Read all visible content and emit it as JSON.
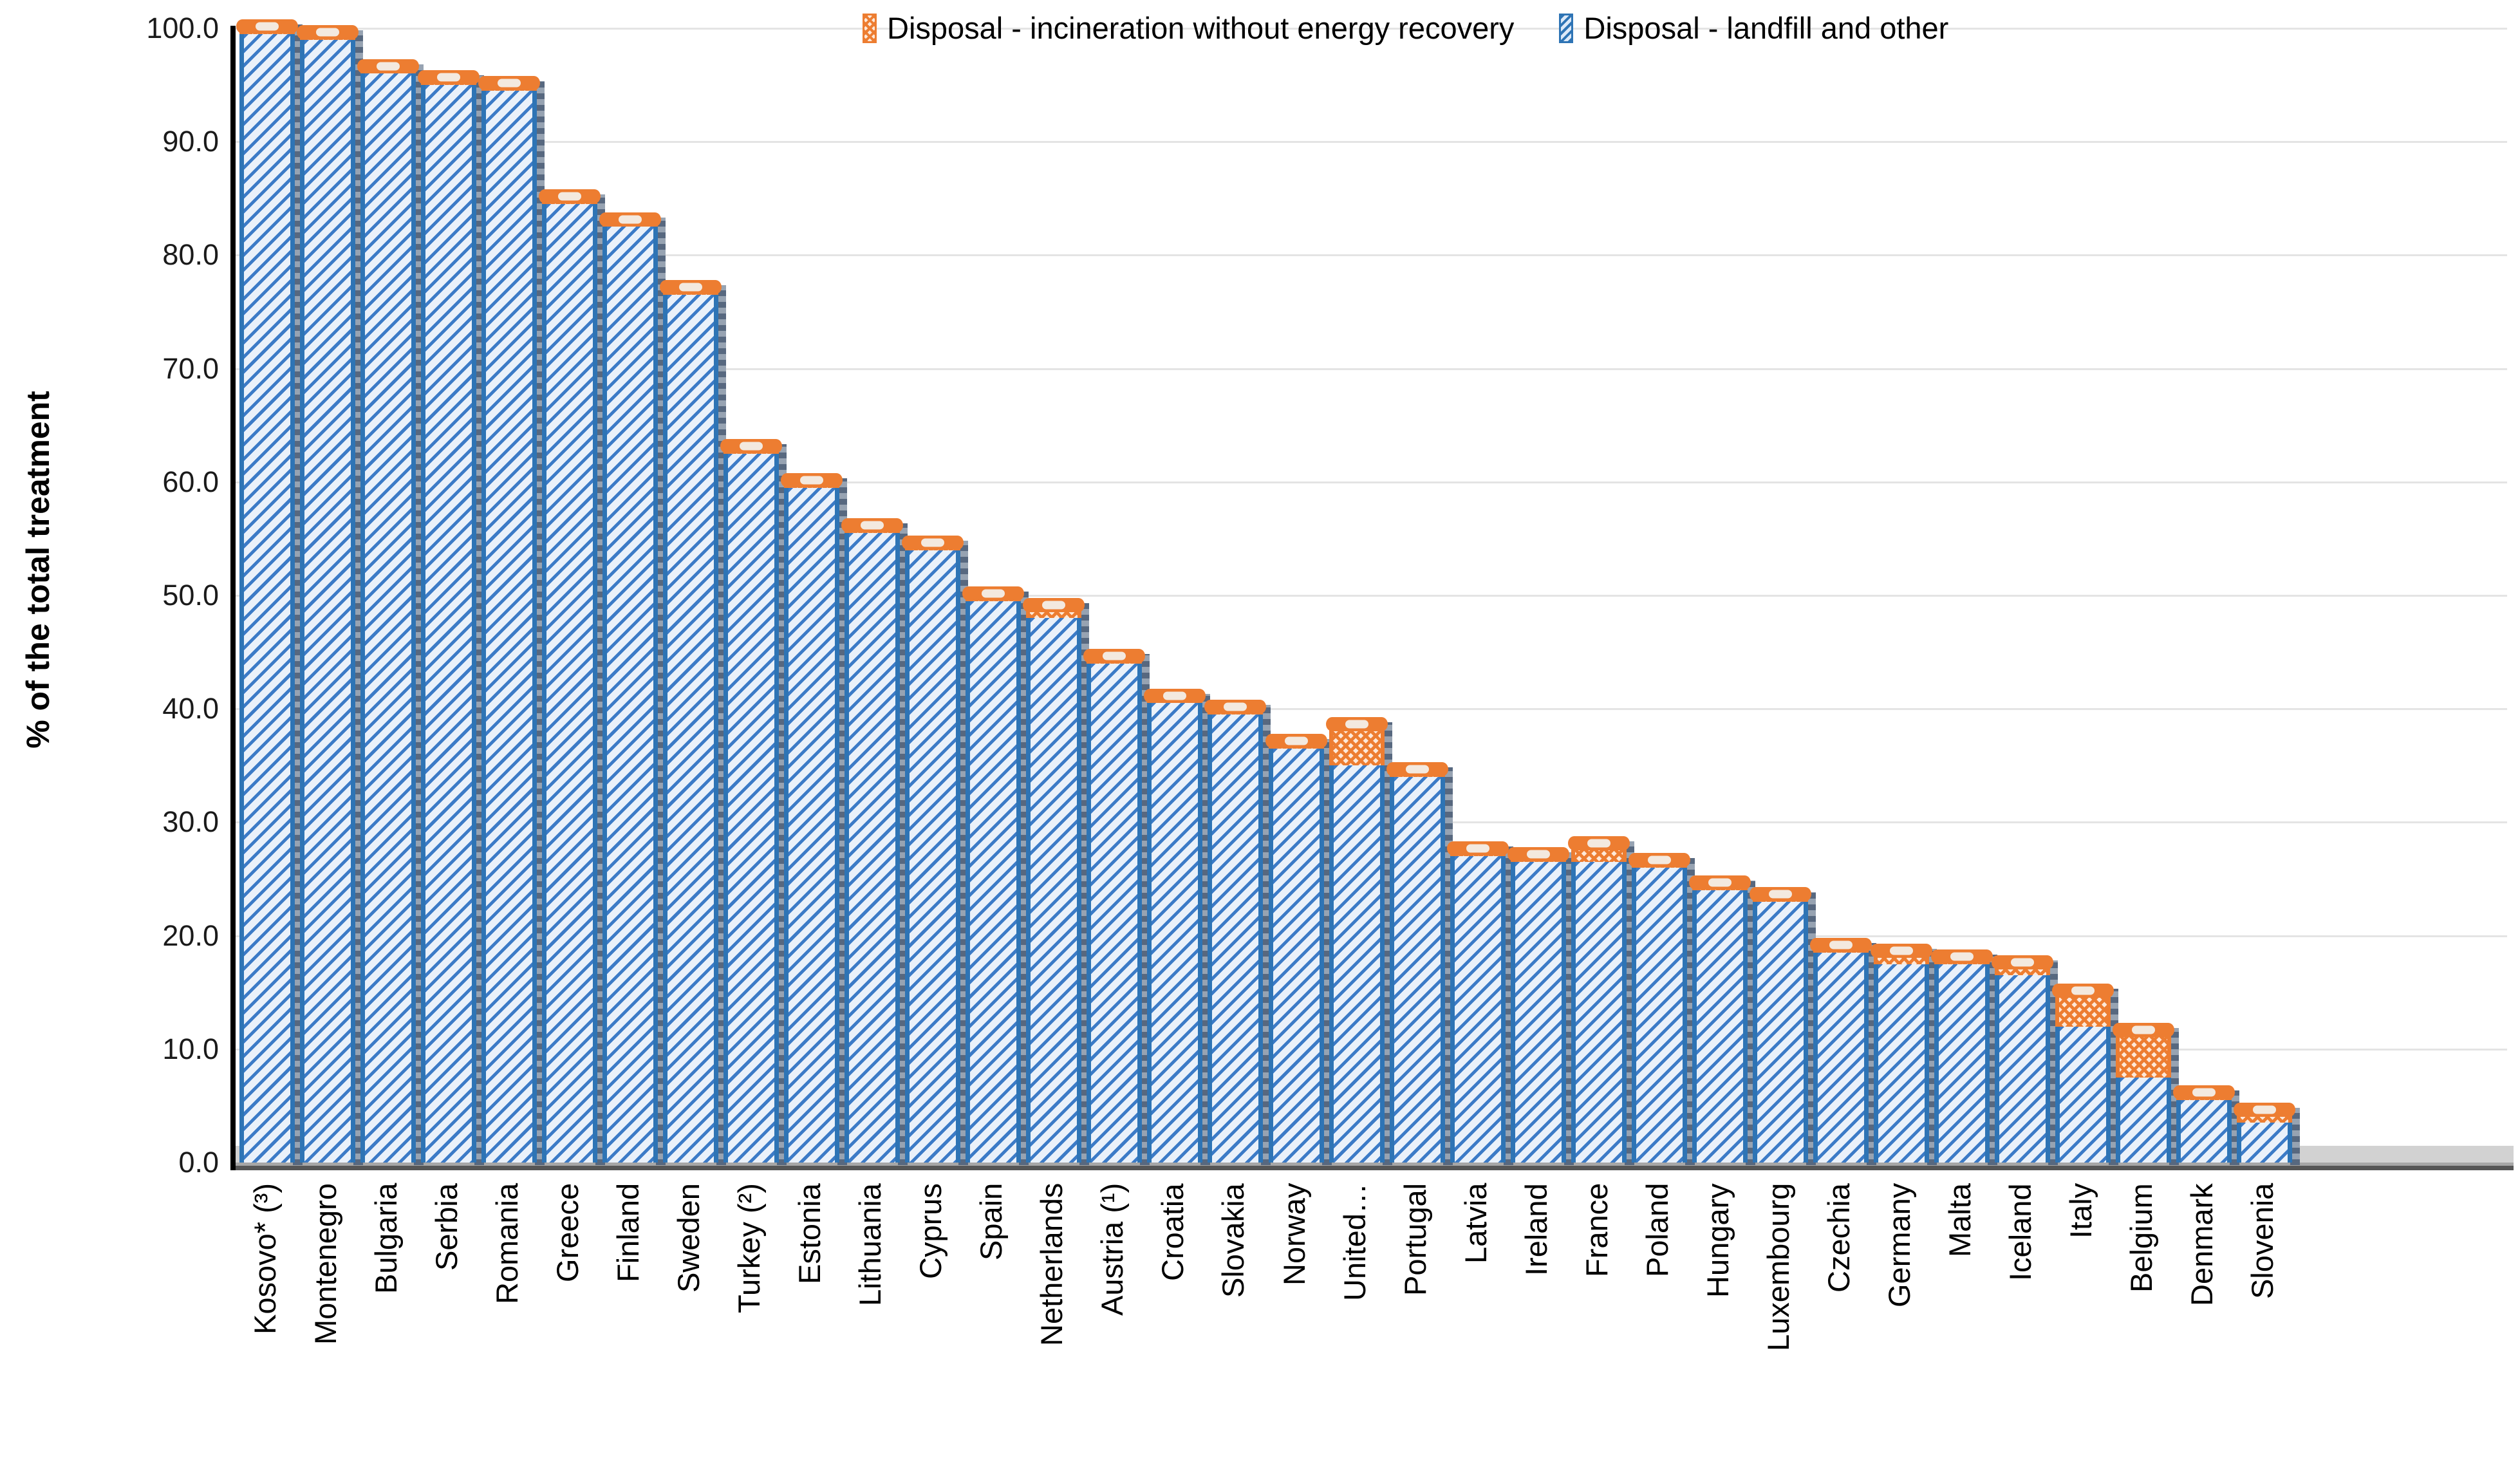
{
  "chart_data": {
    "type": "bar",
    "stacked": true,
    "title": "",
    "ylabel": "% of the total treatment",
    "xlabel": "",
    "ylim": [
      0,
      100
    ],
    "ytick_step": 10,
    "yticks": [
      "100.0",
      "90.0",
      "80.0",
      "70.0",
      "60.0",
      "50.0",
      "40.0",
      "30.0",
      "20.0",
      "10.0",
      "0.0"
    ],
    "grid": true,
    "legend_position": "top",
    "categories": [
      "Kosovo* (³)",
      "Montenegro",
      "Bulgaria",
      "Serbia",
      "Romania",
      "Greece",
      "Finland",
      "Sweden",
      "Turkey (²)",
      "Estonia",
      "Lithuania",
      "Cyprus",
      "Spain",
      "Netherlands",
      "Austria (¹)",
      "Croatia",
      "Slovakia",
      "Norway",
      "United…",
      "Portugal",
      "Latvia",
      "Ireland",
      "France",
      "Poland",
      "Hungary",
      "Luxembourg",
      "Czechia",
      "Germany",
      "Malta",
      "Iceland",
      "Italy",
      "Belgium",
      "Denmark",
      "Slovenia"
    ],
    "series": [
      {
        "name": "Disposal - incineration without energy recovery",
        "color": "#ED7D31",
        "pattern": "orange-checker",
        "stack_order": "top",
        "values": [
          0.5,
          0.5,
          0.5,
          0.5,
          0.5,
          0.5,
          0.5,
          0.5,
          0.5,
          0.5,
          0.5,
          0.5,
          0.5,
          1,
          0.5,
          0.5,
          0.5,
          0.5,
          3.5,
          0.5,
          0.5,
          0.5,
          1.5,
          0.5,
          0.5,
          0.5,
          0.5,
          1,
          0.5,
          1,
          3,
          4,
          0.5,
          1
        ]
      },
      {
        "name": "Disposal - landfill and other",
        "color": "#2E74B5",
        "pattern": "blue-diagonal-hatch",
        "stack_order": "bottom",
        "values": [
          99.5,
          99,
          96,
          95,
          94.5,
          84.5,
          82.5,
          76.5,
          62.5,
          59.5,
          55.5,
          54,
          49.5,
          48,
          44,
          40.5,
          39.5,
          36.5,
          35,
          34,
          27,
          26.5,
          26.5,
          26,
          24,
          23,
          18.5,
          17.5,
          17.5,
          16.5,
          12,
          7.5,
          5.5,
          3.5
        ]
      }
    ]
  },
  "colors": {
    "orange": "#ED7D31",
    "blue": "#2E74B5",
    "gridline": "#E4E4E4",
    "axis": "#000000",
    "floor_light": "#D2D2D2",
    "floor_dark": "#565656",
    "text": "#000000"
  }
}
